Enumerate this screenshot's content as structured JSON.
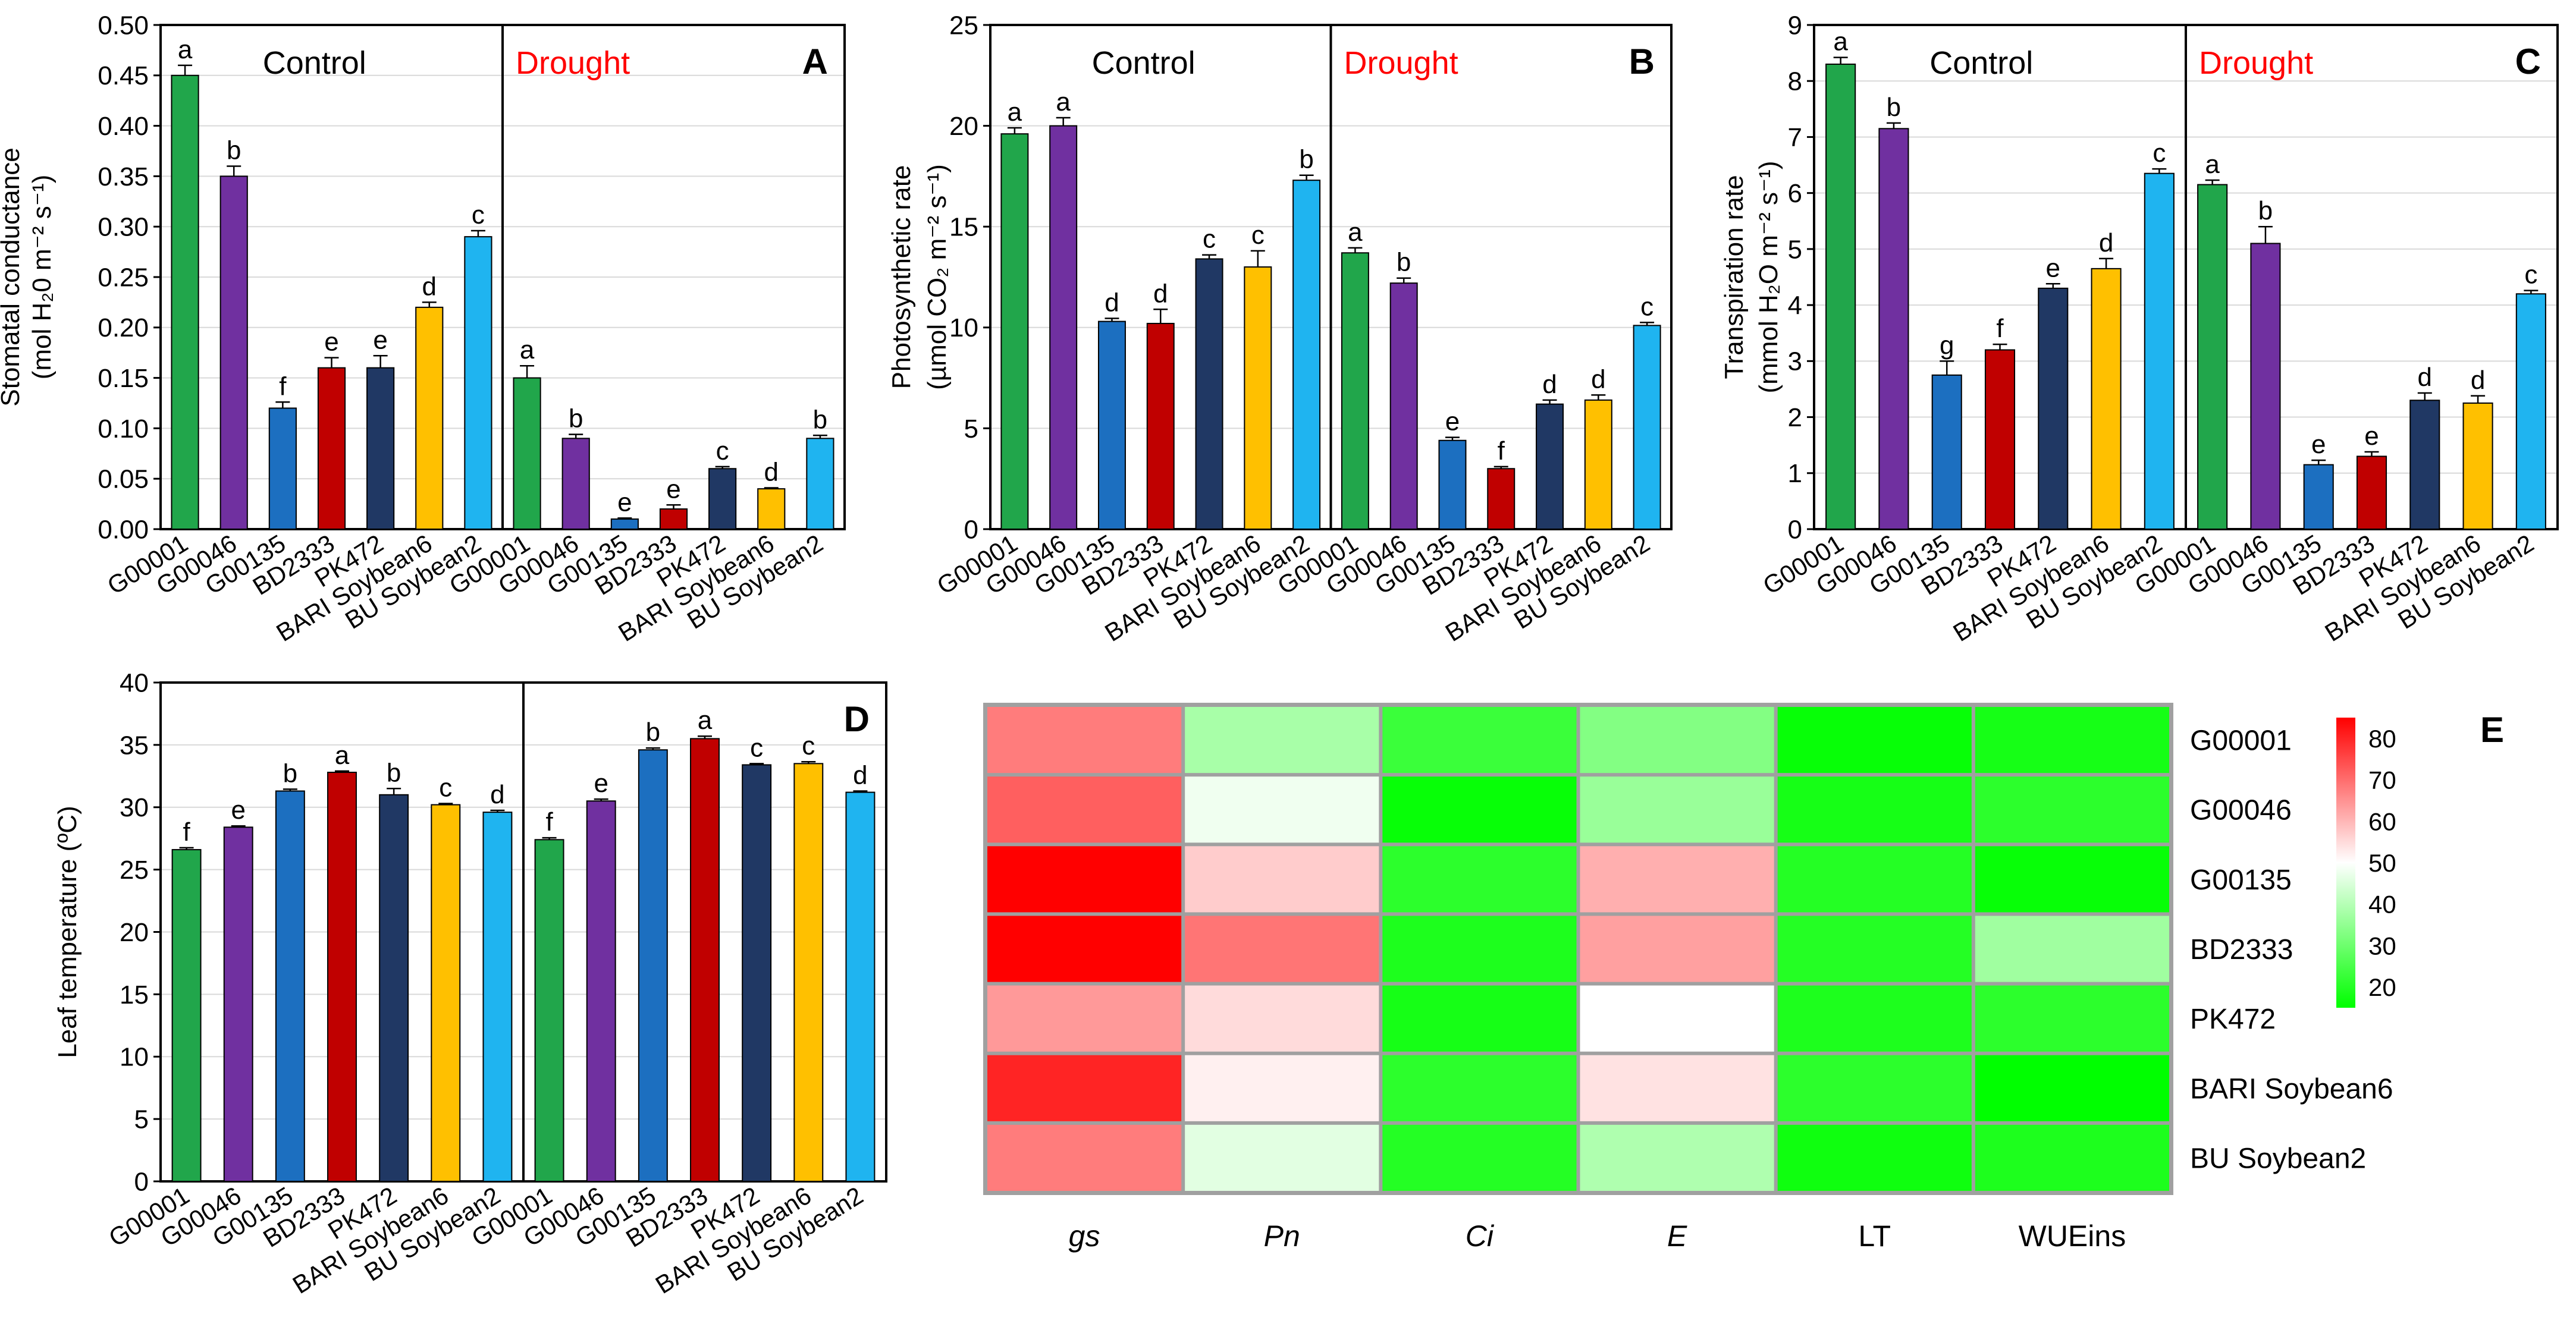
{
  "genotypes": [
    "G00001",
    "G00046",
    "G00135",
    "BD2333",
    "PK472",
    "BARI Soybean6",
    "BU Soybean2"
  ],
  "colors": [
    "#21a64b",
    "#7030a0",
    "#1c6fc0",
    "#c00000",
    "#203864",
    "#ffc000",
    "#1fb4f0"
  ],
  "heatmap_gradient": [
    "#ff0000",
    "#ffffff",
    "#00ff00"
  ],
  "chart_data": [
    {
      "type": "bar",
      "panel": "A",
      "control_label": "Control",
      "drought_label": "Drought",
      "ylabel_line1": "Stomatal conductance",
      "ylabel_line2": "(mol H₂0 m⁻² s⁻¹)",
      "ylim": [
        0,
        0.5
      ],
      "ticks": [
        "0.00",
        "0.05",
        "0.10",
        "0.15",
        "0.20",
        "0.25",
        "0.30",
        "0.35",
        "0.40",
        "0.45",
        "0.50"
      ],
      "series": [
        {
          "name": "Control",
          "values": [
            0.45,
            0.35,
            0.12,
            0.16,
            0.16,
            0.22,
            0.29
          ],
          "errors": [
            0.01,
            0.01,
            0.006,
            0.01,
            0.012,
            0.005,
            0.006
          ],
          "letters": [
            "a",
            "b",
            "f",
            "e",
            "e",
            "d",
            "c"
          ]
        },
        {
          "name": "Drought",
          "values": [
            0.15,
            0.09,
            0.01,
            0.02,
            0.06,
            0.04,
            0.09
          ],
          "errors": [
            0.012,
            0.004,
            0.001,
            0.004,
            0.002,
            0.001,
            0.003
          ],
          "letters": [
            "a",
            "b",
            "e",
            "e",
            "c",
            "d",
            "b"
          ]
        }
      ]
    },
    {
      "type": "bar",
      "panel": "B",
      "control_label": "Control",
      "drought_label": "Drought",
      "ylabel_line1": "Photosynthetic rate",
      "ylabel_line2": "(µmol CO₂ m⁻² s⁻¹)",
      "ylim": [
        0,
        25
      ],
      "ticks": [
        "0",
        "5",
        "10",
        "15",
        "20",
        "25"
      ],
      "series": [
        {
          "name": "Control",
          "values": [
            19.6,
            20.0,
            10.3,
            10.2,
            13.4,
            13.0,
            17.3
          ],
          "errors": [
            0.3,
            0.4,
            0.15,
            0.7,
            0.2,
            0.8,
            0.25
          ],
          "letters": [
            "a",
            "a",
            "d",
            "d",
            "c",
            "c",
            "b"
          ]
        },
        {
          "name": "Drought",
          "values": [
            13.7,
            12.2,
            4.4,
            3.0,
            6.2,
            6.4,
            10.1
          ],
          "errors": [
            0.25,
            0.25,
            0.15,
            0.1,
            0.2,
            0.25,
            0.15
          ],
          "letters": [
            "a",
            "b",
            "e",
            "f",
            "d",
            "d",
            "c"
          ]
        }
      ]
    },
    {
      "type": "bar",
      "panel": "C",
      "control_label": "Control",
      "drought_label": "Drought",
      "ylabel_line1": "Transpiration rate",
      "ylabel_line2": "(mmol H₂O m⁻² s⁻¹)",
      "ylim": [
        0,
        9
      ],
      "ticks": [
        "0",
        "1",
        "2",
        "3",
        "4",
        "5",
        "6",
        "7",
        "8",
        "9"
      ],
      "series": [
        {
          "name": "Control",
          "values": [
            8.3,
            7.15,
            2.75,
            3.2,
            4.3,
            4.65,
            6.35
          ],
          "errors": [
            0.12,
            0.1,
            0.25,
            0.1,
            0.08,
            0.18,
            0.08
          ],
          "letters": [
            "a",
            "b",
            "g",
            "f",
            "e",
            "d",
            "c"
          ]
        },
        {
          "name": "Drought",
          "values": [
            6.15,
            5.1,
            1.15,
            1.3,
            2.3,
            2.25,
            4.2
          ],
          "errors": [
            0.08,
            0.3,
            0.08,
            0.08,
            0.13,
            0.13,
            0.06
          ],
          "letters": [
            "a",
            "b",
            "e",
            "e",
            "d",
            "d",
            "c"
          ]
        }
      ]
    },
    {
      "type": "bar",
      "panel": "D",
      "ylabel_line1": "Leaf temperature (ºC)",
      "ylim": [
        0,
        40
      ],
      "ticks": [
        "0",
        "5",
        "10",
        "15",
        "20",
        "25",
        "30",
        "35",
        "40"
      ],
      "series": [
        {
          "name": "Control",
          "values": [
            26.6,
            28.4,
            31.3,
            32.8,
            31.0,
            30.2,
            29.6
          ],
          "errors": [
            0.15,
            0.1,
            0.15,
            0.1,
            0.5,
            0.1,
            0.15
          ],
          "letters": [
            "f",
            "e",
            "b",
            "a",
            "b",
            "c",
            "d"
          ]
        },
        {
          "name": "Drought",
          "values": [
            27.4,
            30.5,
            34.6,
            35.5,
            33.4,
            33.5,
            31.2
          ],
          "errors": [
            0.15,
            0.15,
            0.15,
            0.2,
            0.1,
            0.15,
            0.1
          ],
          "letters": [
            "f",
            "e",
            "b",
            "a",
            "c",
            "c",
            "d"
          ]
        }
      ]
    },
    {
      "type": "heatmap",
      "panel": "E",
      "rows": [
        "G00001",
        "G00046",
        "G00135",
        "BD2333",
        "PK472",
        "BARI Soybean6",
        "BU Soybean2"
      ],
      "columns": [
        "gs",
        "Pn",
        "Ci",
        "E",
        "LT",
        "WUEins"
      ],
      "italic_columns": [
        true,
        true,
        true,
        true,
        false,
        false
      ],
      "values": [
        [
          68,
          38,
          23,
          33,
          16,
          18
        ],
        [
          72,
          48,
          16,
          36,
          18,
          21
        ],
        [
          85,
          57,
          21,
          61,
          20,
          16
        ],
        [
          85,
          69,
          19,
          63,
          20,
          37
        ],
        [
          64,
          55,
          18,
          50,
          19,
          21
        ],
        [
          80,
          52,
          21,
          54,
          21,
          15
        ],
        [
          68,
          46,
          20,
          39,
          17,
          19
        ]
      ],
      "scale_min": 15,
      "scale_max": 85,
      "scale_ticks": [
        "20",
        "30",
        "40",
        "50",
        "60",
        "70",
        "80"
      ]
    }
  ]
}
